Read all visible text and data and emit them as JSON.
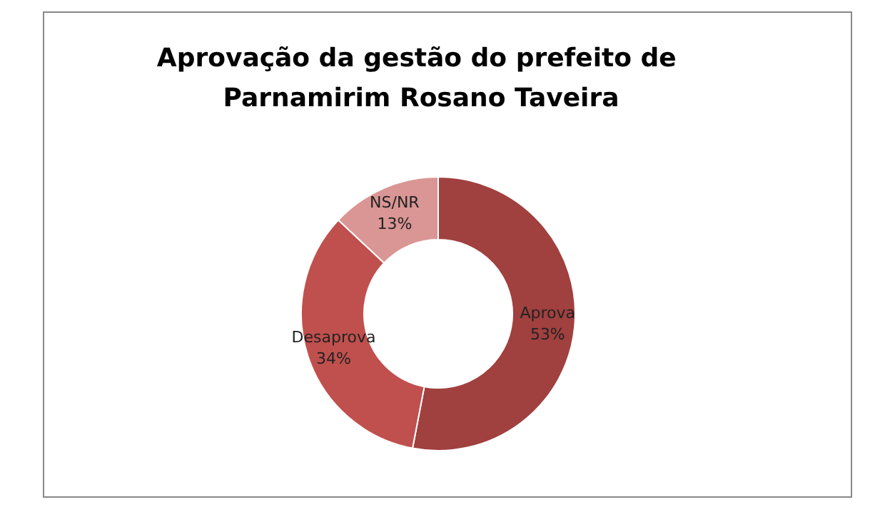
{
  "chart_data": {
    "type": "donut",
    "title": "Aprovação da gestão do prefeito de Parnamirim Rosano Taveira",
    "categories": [
      "Aprova",
      "Desaprova",
      "NS/NR"
    ],
    "values": [
      53,
      34,
      13
    ],
    "colors": [
      "#a0403f",
      "#c0504d",
      "#d99694"
    ],
    "value_labels": [
      "53%",
      "34%",
      "13%"
    ],
    "legend": false
  }
}
